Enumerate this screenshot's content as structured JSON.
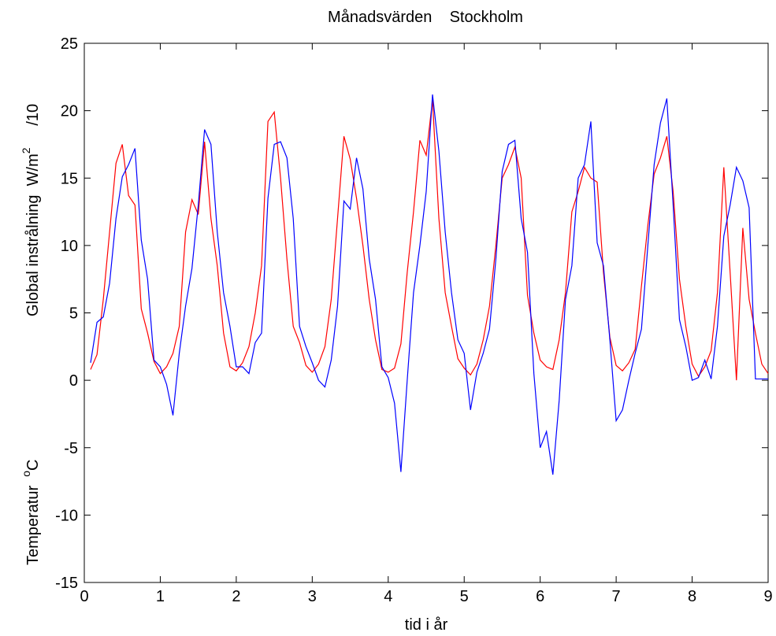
{
  "chart_data": {
    "type": "line",
    "title": "Månadsvärden    Stockholm",
    "x_label": "tid i år",
    "y_label_parts": [
      "Global instrålning  W/m",
      "2",
      "     /10"
    ],
    "y_label2_parts": [
      "Temperatur  ",
      "o",
      "C"
    ],
    "x": [
      0.083,
      0.167,
      0.25,
      0.333,
      0.417,
      0.5,
      0.583,
      0.667,
      0.75,
      0.833,
      0.917,
      1,
      1.083,
      1.167,
      1.25,
      1.333,
      1.417,
      1.5,
      1.583,
      1.667,
      1.75,
      1.833,
      1.917,
      2,
      2.083,
      2.167,
      2.25,
      2.333,
      2.417,
      2.5,
      2.583,
      2.667,
      2.75,
      2.833,
      2.917,
      3,
      3.083,
      3.167,
      3.25,
      3.333,
      3.417,
      3.5,
      3.583,
      3.667,
      3.75,
      3.833,
      3.917,
      4,
      4.083,
      4.167,
      4.25,
      4.333,
      4.417,
      4.5,
      4.583,
      4.667,
      4.75,
      4.833,
      4.917,
      5,
      5.083,
      5.167,
      5.25,
      5.333,
      5.417,
      5.5,
      5.583,
      5.667,
      5.75,
      5.833,
      5.917,
      6,
      6.083,
      6.167,
      6.25,
      6.333,
      6.417,
      6.5,
      6.583,
      6.667,
      6.75,
      6.833,
      6.917,
      7,
      7.083,
      7.167,
      7.25,
      7.333,
      7.417,
      7.5,
      7.583,
      7.667,
      7.75,
      7.833,
      7.917,
      8,
      8.083,
      8.167,
      8.25,
      8.333,
      8.417,
      8.5,
      8.583,
      8.667,
      8.75,
      8.833,
      8.917,
      9
    ],
    "series": [
      {
        "color": "#ff0000",
        "values": [
          0.8,
          1.9,
          6.0,
          11.0,
          16.1,
          17.5,
          13.7,
          13.0,
          5.3,
          3.5,
          1.4,
          0.5,
          1.0,
          2.0,
          4.0,
          11.0,
          13.4,
          12.3,
          17.7,
          12.0,
          8.5,
          3.5,
          1.0,
          0.7,
          1.3,
          2.5,
          5.0,
          8.5,
          19.2,
          19.9,
          15.0,
          9.0,
          4.0,
          2.8,
          1.1,
          0.6,
          1.2,
          2.5,
          6.0,
          12.0,
          18.1,
          16.4,
          13.5,
          10.0,
          6.0,
          3.0,
          0.8,
          0.6,
          0.9,
          2.7,
          8.0,
          12.5,
          17.8,
          16.7,
          20.8,
          12.0,
          6.5,
          4.0,
          1.6,
          0.9,
          0.4,
          1.2,
          3.0,
          5.5,
          10.0,
          15.0,
          16.0,
          17.3,
          15.0,
          6.3,
          3.5,
          1.5,
          1.0,
          0.8,
          3.0,
          6.5,
          12.5,
          14.0,
          15.8,
          15.0,
          14.7,
          8.0,
          3.2,
          1.1,
          0.7,
          1.3,
          2.3,
          7.0,
          11.5,
          15.3,
          16.5,
          18.1,
          14.0,
          7.5,
          4.0,
          1.2,
          0.3,
          1.0,
          2.2,
          6.5,
          15.8,
          8.0,
          0.0,
          11.3,
          6.0,
          3.5,
          1.2,
          0.5
        ]
      },
      {
        "color": "#0000ff",
        "values": [
          1.3,
          4.3,
          4.7,
          7.2,
          12.0,
          15.1,
          16.0,
          17.2,
          10.4,
          7.5,
          1.5,
          1.0,
          -0.3,
          -2.6,
          2.0,
          5.5,
          8.3,
          13.0,
          18.6,
          17.5,
          11.0,
          6.5,
          4.0,
          1.0,
          1.0,
          0.5,
          2.8,
          3.5,
          13.5,
          17.5,
          17.7,
          16.5,
          12.0,
          4.0,
          2.5,
          1.3,
          0.0,
          -0.5,
          1.5,
          5.5,
          13.3,
          12.7,
          16.5,
          14.2,
          9.0,
          6.0,
          1.0,
          0.2,
          -1.7,
          -6.8,
          0.0,
          6.5,
          10.0,
          14.0,
          21.2,
          17.0,
          11.0,
          6.5,
          3.0,
          2.0,
          -2.2,
          0.6,
          2.0,
          3.8,
          9.0,
          15.5,
          17.5,
          17.8,
          12.0,
          9.5,
          0.5,
          -5.0,
          -3.8,
          -7.0,
          -1.5,
          6.0,
          8.5,
          15.0,
          16.0,
          19.2,
          10.2,
          8.5,
          3.0,
          -3.0,
          -2.2,
          0.0,
          2.0,
          3.8,
          10.0,
          16.0,
          19.1,
          20.9,
          13.0,
          4.5,
          2.5,
          0.0,
          0.2,
          1.5,
          0.1,
          4.0,
          10.7,
          13.0,
          15.8,
          14.8,
          12.8,
          0.1,
          0.1,
          0.1
        ]
      }
    ],
    "xlim": [
      0,
      9
    ],
    "xticks": [
      0,
      1,
      2,
      3,
      4,
      5,
      6,
      7,
      8,
      9
    ],
    "ylim": [
      -15,
      25
    ],
    "yticks": [
      -15,
      -10,
      -5,
      0,
      5,
      10,
      15,
      20,
      25
    ],
    "grid": false
  }
}
